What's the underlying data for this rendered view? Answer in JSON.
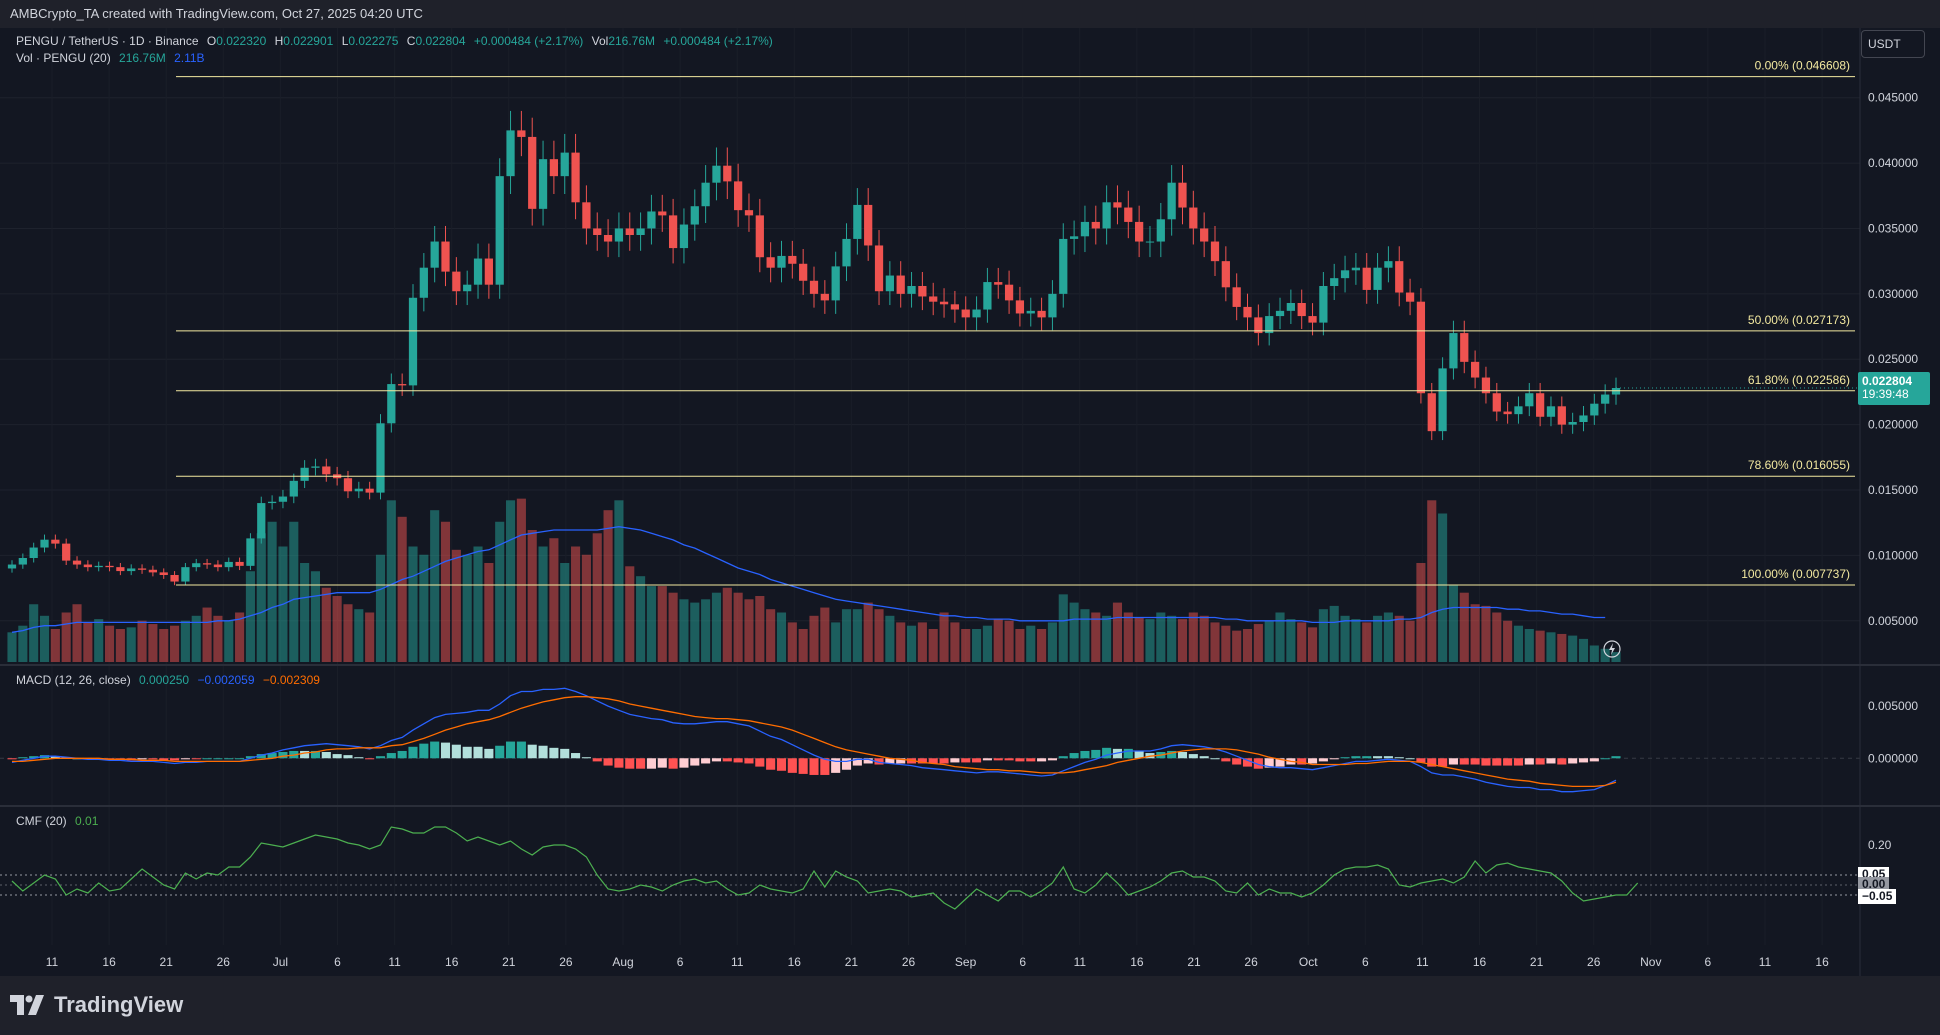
{
  "header": {
    "attribution": "AMBCrypto_TA created with TradingView.com, Oct 27, 2025 04:20 UTC"
  },
  "legend": {
    "symbol": "PENGU / TetherUS · 1D · Binance",
    "o_label": "O",
    "o_value": "0.022320",
    "h_label": "H",
    "h_value": "0.022901",
    "l_label": "L",
    "l_value": "0.022275",
    "c_label": "C",
    "c_value": "0.022804",
    "change": "+0.000484 (+2.17%)",
    "vol_label": "Vol",
    "vol_value": "216.76M",
    "vol_change": "+0.000484 (+2.17%)",
    "vol_line_label": "Vol · PENGU (20)",
    "vol_line_v1": "216.76M",
    "vol_line_v2": "2.11B",
    "macd_label": "MACD (12, 26, close)",
    "macd_v1": "0.000250",
    "macd_v2": "−0.002059",
    "macd_v3": "−0.002309",
    "cmf_label": "CMF (20)",
    "cmf_v": "0.01"
  },
  "currency_button": "USDT",
  "last_price": {
    "value": "0.022804",
    "countdown": "19:39:48"
  },
  "cmf_tags": {
    "upper": "0.05",
    "mid": "0.00",
    "lower": "−0.05"
  },
  "brand": "TradingView",
  "colors": {
    "up": "#26a69a",
    "down": "#ef5350",
    "fib": "#f3e9a0",
    "macd": "#2962ff",
    "signal": "#ff6d00",
    "cmf": "#4caf50",
    "volma": "#2962ff"
  },
  "chart_data": [
    {
      "type": "candlestick",
      "title": "PENGU / TetherUS · 1D · Binance",
      "ylim": [
        0.002,
        0.0475
      ],
      "y_ticks": [
        "0.045000",
        "0.040000",
        "0.035000",
        "0.030000",
        "0.025000",
        "0.020000",
        "0.015000",
        "0.010000",
        "0.005000"
      ],
      "x_ticks": [
        "11",
        "16",
        "21",
        "26",
        "Jul",
        "6",
        "11",
        "16",
        "21",
        "26",
        "Aug",
        "6",
        "11",
        "16",
        "21",
        "26",
        "Sep",
        "6",
        "11",
        "16",
        "21",
        "26",
        "Oct",
        "6",
        "11",
        "16",
        "21",
        "26",
        "Nov",
        "6",
        "11",
        "16"
      ],
      "close": [
        0.0093,
        0.0098,
        0.0106,
        0.0112,
        0.0109,
        0.0096,
        0.0093,
        0.0091,
        0.0092,
        0.0091,
        0.0088,
        0.009,
        0.0089,
        0.0087,
        0.0085,
        0.008,
        0.0091,
        0.0094,
        0.0093,
        0.0091,
        0.0095,
        0.0092,
        0.0113,
        0.014,
        0.0141,
        0.0145,
        0.0157,
        0.0167,
        0.0168,
        0.0162,
        0.0159,
        0.0149,
        0.0151,
        0.0148,
        0.0201,
        0.0231,
        0.023,
        0.0297,
        0.032,
        0.034,
        0.0317,
        0.0302,
        0.0307,
        0.0327,
        0.0307,
        0.039,
        0.0425,
        0.042,
        0.0365,
        0.0403,
        0.039,
        0.0408,
        0.037,
        0.035,
        0.0345,
        0.034,
        0.035,
        0.0345,
        0.035,
        0.0363,
        0.036,
        0.0335,
        0.0353,
        0.0367,
        0.0385,
        0.0398,
        0.0386,
        0.0364,
        0.036,
        0.0328,
        0.032,
        0.0329,
        0.0323,
        0.031,
        0.03,
        0.0295,
        0.0321,
        0.0342,
        0.0368,
        0.0337,
        0.0302,
        0.0314,
        0.03,
        0.0306,
        0.0298,
        0.0294,
        0.0292,
        0.0288,
        0.0282,
        0.0288,
        0.0309,
        0.0307,
        0.0295,
        0.0285,
        0.0287,
        0.0282,
        0.03,
        0.0342,
        0.0344,
        0.0355,
        0.035,
        0.037,
        0.0366,
        0.0355,
        0.034,
        0.034,
        0.0357,
        0.0385,
        0.0366,
        0.035,
        0.034,
        0.0325,
        0.0305,
        0.029,
        0.0282,
        0.027,
        0.0283,
        0.0287,
        0.0293,
        0.0283,
        0.0278,
        0.0306,
        0.0312,
        0.0318,
        0.032,
        0.0303,
        0.032,
        0.0325,
        0.0301,
        0.0294,
        0.0224,
        0.0195,
        0.0243,
        0.027,
        0.0248,
        0.0236,
        0.0224,
        0.021,
        0.0208,
        0.0214,
        0.0224,
        0.0206,
        0.0214,
        0.02,
        0.0202,
        0.0207,
        0.0216,
        0.0223,
        0.0228
      ],
      "fib_levels": [
        {
          "label": "0.00% (0.046608)",
          "value": 0.046608
        },
        {
          "label": "50.00% (0.027173)",
          "value": 0.027173
        },
        {
          "label": "61.80% (0.022586)",
          "value": 0.022586
        },
        {
          "label": "78.60% (0.016055)",
          "value": 0.016055
        },
        {
          "label": "100.00% (0.007737)",
          "value": 0.007737
        }
      ]
    },
    {
      "type": "bar",
      "title": "Vol · PENGU (20)",
      "values_relative": [
        0.18,
        0.22,
        0.35,
        0.28,
        0.2,
        0.3,
        0.35,
        0.24,
        0.26,
        0.22,
        0.2,
        0.21,
        0.25,
        0.23,
        0.2,
        0.22,
        0.25,
        0.28,
        0.33,
        0.28,
        0.25,
        0.3,
        0.55,
        0.78,
        0.85,
        0.7,
        0.85,
        0.6,
        0.55,
        0.45,
        0.4,
        0.35,
        0.32,
        0.3,
        0.65,
        0.98,
        0.88,
        0.7,
        0.65,
        0.92,
        0.85,
        0.68,
        0.65,
        0.7,
        0.6,
        0.85,
        0.98,
        0.99,
        0.8,
        0.7,
        0.75,
        0.6,
        0.7,
        0.65,
        0.78,
        0.92,
        0.98,
        0.58,
        0.52,
        0.46,
        0.46,
        0.42,
        0.38,
        0.36,
        0.38,
        0.42,
        0.45,
        0.42,
        0.38,
        0.4,
        0.32,
        0.3,
        0.24,
        0.2,
        0.28,
        0.33,
        0.24,
        0.32,
        0.32,
        0.36,
        0.32,
        0.28,
        0.24,
        0.22,
        0.24,
        0.2,
        0.3,
        0.24,
        0.2,
        0.2,
        0.22,
        0.26,
        0.25,
        0.2,
        0.22,
        0.2,
        0.24,
        0.41,
        0.36,
        0.32,
        0.3,
        0.28,
        0.36,
        0.3,
        0.27,
        0.26,
        0.3,
        0.28,
        0.26,
        0.3,
        0.28,
        0.24,
        0.22,
        0.19,
        0.2,
        0.23,
        0.25,
        0.3,
        0.26,
        0.24,
        0.21,
        0.32,
        0.34,
        0.28,
        0.26,
        0.24,
        0.28,
        0.3,
        0.28,
        0.25,
        0.6,
        0.98,
        0.9,
        0.47,
        0.42,
        0.35,
        0.34,
        0.3,
        0.25,
        0.22,
        0.2,
        0.19,
        0.18,
        0.17,
        0.16,
        0.14,
        0.1,
        0.08,
        0.06
      ],
      "ma_relative": [
        0.18,
        0.19,
        0.21,
        0.22,
        0.22,
        0.23,
        0.24,
        0.24,
        0.24,
        0.24,
        0.24,
        0.24,
        0.24,
        0.24,
        0.24,
        0.24,
        0.24,
        0.24,
        0.24,
        0.25,
        0.25,
        0.26,
        0.28,
        0.3,
        0.33,
        0.35,
        0.38,
        0.39,
        0.4,
        0.41,
        0.42,
        0.42,
        0.42,
        0.42,
        0.44,
        0.47,
        0.5,
        0.52,
        0.55,
        0.58,
        0.61,
        0.63,
        0.65,
        0.67,
        0.68,
        0.71,
        0.74,
        0.77,
        0.78,
        0.79,
        0.8,
        0.8,
        0.8,
        0.8,
        0.8,
        0.81,
        0.82,
        0.81,
        0.8,
        0.78,
        0.76,
        0.74,
        0.71,
        0.69,
        0.66,
        0.63,
        0.6,
        0.57,
        0.55,
        0.53,
        0.5,
        0.48,
        0.46,
        0.44,
        0.42,
        0.4,
        0.38,
        0.37,
        0.36,
        0.35,
        0.34,
        0.33,
        0.32,
        0.31,
        0.3,
        0.29,
        0.28,
        0.28,
        0.27,
        0.27,
        0.26,
        0.26,
        0.26,
        0.25,
        0.25,
        0.25,
        0.25,
        0.25,
        0.26,
        0.26,
        0.26,
        0.26,
        0.27,
        0.27,
        0.27,
        0.27,
        0.27,
        0.27,
        0.27,
        0.27,
        0.27,
        0.27,
        0.26,
        0.26,
        0.25,
        0.25,
        0.25,
        0.25,
        0.25,
        0.25,
        0.24,
        0.24,
        0.24,
        0.25,
        0.25,
        0.25,
        0.25,
        0.25,
        0.26,
        0.26,
        0.27,
        0.3,
        0.32,
        0.33,
        0.33,
        0.33,
        0.33,
        0.33,
        0.32,
        0.32,
        0.31,
        0.31,
        0.3,
        0.29,
        0.29,
        0.28,
        0.27,
        0.27
      ]
    },
    {
      "type": "macd",
      "title": "MACD (12, 26, close)",
      "ylim": [
        -0.004,
        0.0075
      ],
      "y_ticks": [
        "0.005000",
        "0.000000"
      ],
      "macd": [
        -0.0004,
        -0.0002,
        0.0,
        0.0002,
        0.0002,
        0.0001,
        0.0,
        -0.0001,
        -0.0001,
        -0.0002,
        -0.0002,
        -0.0003,
        -0.0003,
        -0.0003,
        -0.0004,
        -0.0005,
        -0.0004,
        -0.0004,
        -0.0003,
        -0.0003,
        -0.0003,
        -0.0003,
        0.0,
        0.0003,
        0.0005,
        0.0008,
        0.001,
        0.0012,
        0.0013,
        0.0014,
        0.0013,
        0.0012,
        0.0011,
        0.0009,
        0.0012,
        0.0017,
        0.002,
        0.0027,
        0.0033,
        0.0039,
        0.0042,
        0.0043,
        0.0044,
        0.0046,
        0.0046,
        0.0052,
        0.006,
        0.0064,
        0.0064,
        0.0066,
        0.0066,
        0.0067,
        0.0064,
        0.006,
        0.0055,
        0.005,
        0.0046,
        0.0042,
        0.004,
        0.0038,
        0.0037,
        0.0034,
        0.0033,
        0.0033,
        0.0034,
        0.0035,
        0.0035,
        0.0033,
        0.0031,
        0.0026,
        0.0021,
        0.0018,
        0.0013,
        0.0008,
        0.0003,
        -0.0001,
        -0.0003,
        -0.0003,
        -0.0001,
        -0.0001,
        -0.0004,
        -0.0005,
        -0.0006,
        -0.0007,
        -0.0009,
        -0.001,
        -0.0011,
        -0.0012,
        -0.0013,
        -0.0014,
        -0.0013,
        -0.0013,
        -0.0014,
        -0.0015,
        -0.0016,
        -0.0017,
        -0.0016,
        -0.0012,
        -0.0008,
        -0.0004,
        -0.0001,
        0.0003,
        0.0005,
        0.0007,
        0.0007,
        0.0007,
        0.0009,
        0.0012,
        0.0013,
        0.0012,
        0.0011,
        0.0009,
        0.0006,
        0.0002,
        -0.0002,
        -0.0006,
        -0.0008,
        -0.0009,
        -0.0009,
        -0.001,
        -0.0011,
        -0.0009,
        -0.0007,
        -0.0005,
        -0.0003,
        -0.0003,
        -0.0002,
        -0.0001,
        -0.0002,
        -0.0003,
        -0.0008,
        -0.0014,
        -0.0016,
        -0.0016,
        -0.0018,
        -0.002,
        -0.0023,
        -0.0025,
        -0.0027,
        -0.0028,
        -0.0028,
        -0.003,
        -0.003,
        -0.0032,
        -0.0032,
        -0.0031,
        -0.003,
        -0.0026,
        -0.0021
      ],
      "signal": [
        -0.0003,
        -0.0003,
        -0.0002,
        -0.0001,
        0.0,
        0.0,
        0.0,
        0.0,
        0.0,
        -0.0001,
        -0.0001,
        -0.0001,
        -0.0002,
        -0.0002,
        -0.0002,
        -0.0003,
        -0.0003,
        -0.0003,
        -0.0003,
        -0.0003,
        -0.0003,
        -0.0003,
        -0.0002,
        -0.0001,
        0.0,
        0.0002,
        0.0003,
        0.0005,
        0.0006,
        0.0008,
        0.0009,
        0.0009,
        0.001,
        0.001,
        0.001,
        0.0012,
        0.0013,
        0.0016,
        0.0019,
        0.0023,
        0.0027,
        0.003,
        0.0033,
        0.0035,
        0.0037,
        0.004,
        0.0044,
        0.0048,
        0.0051,
        0.0054,
        0.0056,
        0.0058,
        0.0059,
        0.0059,
        0.0058,
        0.0057,
        0.0055,
        0.0052,
        0.005,
        0.0048,
        0.0046,
        0.0044,
        0.0042,
        0.004,
        0.0039,
        0.0038,
        0.0038,
        0.0037,
        0.0036,
        0.0034,
        0.0032,
        0.003,
        0.0027,
        0.0023,
        0.0019,
        0.0015,
        0.0011,
        0.0008,
        0.0006,
        0.0004,
        0.0002,
        0.0,
        -0.0001,
        -0.0002,
        -0.0004,
        -0.0005,
        -0.0006,
        -0.0008,
        -0.0009,
        -0.001,
        -0.0011,
        -0.0011,
        -0.0012,
        -0.0012,
        -0.0013,
        -0.0014,
        -0.0014,
        -0.0014,
        -0.0013,
        -0.0011,
        -0.0009,
        -0.0007,
        -0.0004,
        -0.0002,
        0.0,
        0.0002,
        0.0003,
        0.0005,
        0.0007,
        0.0008,
        0.0009,
        0.0009,
        0.0009,
        0.0008,
        0.0006,
        0.0004,
        0.0001,
        -0.0001,
        -0.0003,
        -0.0004,
        -0.0006,
        -0.0006,
        -0.0006,
        -0.0006,
        -0.0005,
        -0.0005,
        -0.0004,
        -0.0003,
        -0.0003,
        -0.0003,
        -0.0004,
        -0.0006,
        -0.0008,
        -0.001,
        -0.0012,
        -0.0014,
        -0.0016,
        -0.0018,
        -0.002,
        -0.0021,
        -0.0022,
        -0.0024,
        -0.0025,
        -0.0026,
        -0.0027,
        -0.0027,
        -0.0027,
        -0.0026,
        -0.0023
      ]
    },
    {
      "type": "line",
      "title": "CMF (20)",
      "ylim": [
        -0.3,
        0.35
      ],
      "y_ticks": [
        "0.20"
      ],
      "bands": [
        0.05,
        0.0,
        -0.05
      ],
      "values": [
        0.02,
        -0.03,
        0.01,
        0.05,
        0.03,
        -0.05,
        -0.02,
        -0.04,
        0.01,
        -0.03,
        -0.02,
        0.03,
        0.08,
        0.04,
        0.0,
        -0.02,
        0.06,
        0.03,
        0.06,
        0.05,
        0.09,
        0.09,
        0.14,
        0.21,
        0.2,
        0.19,
        0.21,
        0.23,
        0.25,
        0.24,
        0.23,
        0.21,
        0.2,
        0.18,
        0.2,
        0.29,
        0.28,
        0.26,
        0.26,
        0.29,
        0.29,
        0.26,
        0.22,
        0.24,
        0.22,
        0.2,
        0.22,
        0.18,
        0.15,
        0.19,
        0.2,
        0.2,
        0.18,
        0.14,
        0.05,
        -0.02,
        -0.03,
        -0.02,
        0.0,
        -0.01,
        -0.03,
        0.0,
        0.02,
        0.03,
        0.01,
        0.02,
        -0.02,
        -0.05,
        -0.04,
        0.0,
        -0.02,
        -0.03,
        -0.04,
        -0.02,
        0.07,
        -0.01,
        0.07,
        0.04,
        0.02,
        -0.04,
        -0.03,
        -0.02,
        -0.03,
        -0.06,
        -0.05,
        -0.04,
        -0.09,
        -0.12,
        -0.07,
        -0.02,
        -0.05,
        -0.08,
        -0.03,
        -0.03,
        -0.06,
        -0.03,
        0.01,
        0.09,
        -0.02,
        -0.04,
        0.0,
        0.06,
        0.01,
        -0.05,
        -0.03,
        -0.01,
        0.02,
        0.06,
        0.07,
        0.04,
        0.04,
        0.02,
        -0.03,
        -0.04,
        0.01,
        -0.05,
        -0.02,
        -0.04,
        -0.04,
        -0.06,
        -0.04,
        0.0,
        0.05,
        0.08,
        0.09,
        0.09,
        0.1,
        0.08,
        0.0,
        -0.01,
        0.01,
        0.02,
        0.03,
        0.01,
        0.04,
        0.12,
        0.06,
        0.1,
        0.11,
        0.09,
        0.08,
        0.07,
        0.06,
        0.02,
        -0.04,
        -0.08,
        -0.07,
        -0.06,
        -0.05,
        -0.05,
        0.01
      ]
    }
  ]
}
